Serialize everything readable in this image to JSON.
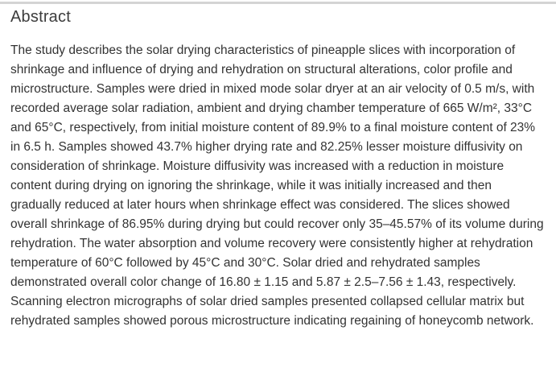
{
  "theme": {
    "background": "#ffffff",
    "text_color": "#333333",
    "heading_color": "#3c3c3c",
    "divider_color": "#d4d4d4"
  },
  "abstract": {
    "heading": "Abstract",
    "body": "The study describes the solar drying characteristics of pineapple slices with incorporation of shrinkage and influence of drying and rehydration on structural alterations, color profile and microstructure. Samples were dried in mixed mode solar dryer at an air velocity of 0.5 m/s, with recorded average solar radiation, ambient and drying chamber temperature of 665 W/m², 33°C and 65°C, respectively, from initial moisture content of 89.9% to a final moisture content of 23% in 6.5 h. Samples showed 43.7% higher drying rate and 82.25% lesser moisture diffusivity on consideration of shrinkage. Moisture diffusivity was increased with a reduction in moisture content during drying on ignoring the shrinkage, while it was initially increased and then gradually reduced at later hours when shrinkage effect was considered. The slices showed overall shrinkage of 86.95% during drying but could recover only 35–45.57% of its volume during rehydration. The water absorption and volume recovery were consistently higher at rehydration temperature of 60°C followed by 45°C and 30°C. Solar dried and rehydrated samples demonstrated overall color change of 16.80 ± 1.15 and 5.87 ± 2.5–7.56 ± 1.43, respectively. Scanning electron micrographs of solar dried samples presented collapsed cellular matrix but rehydrated samples showed porous microstructure indicating regaining of honeycomb network."
  }
}
